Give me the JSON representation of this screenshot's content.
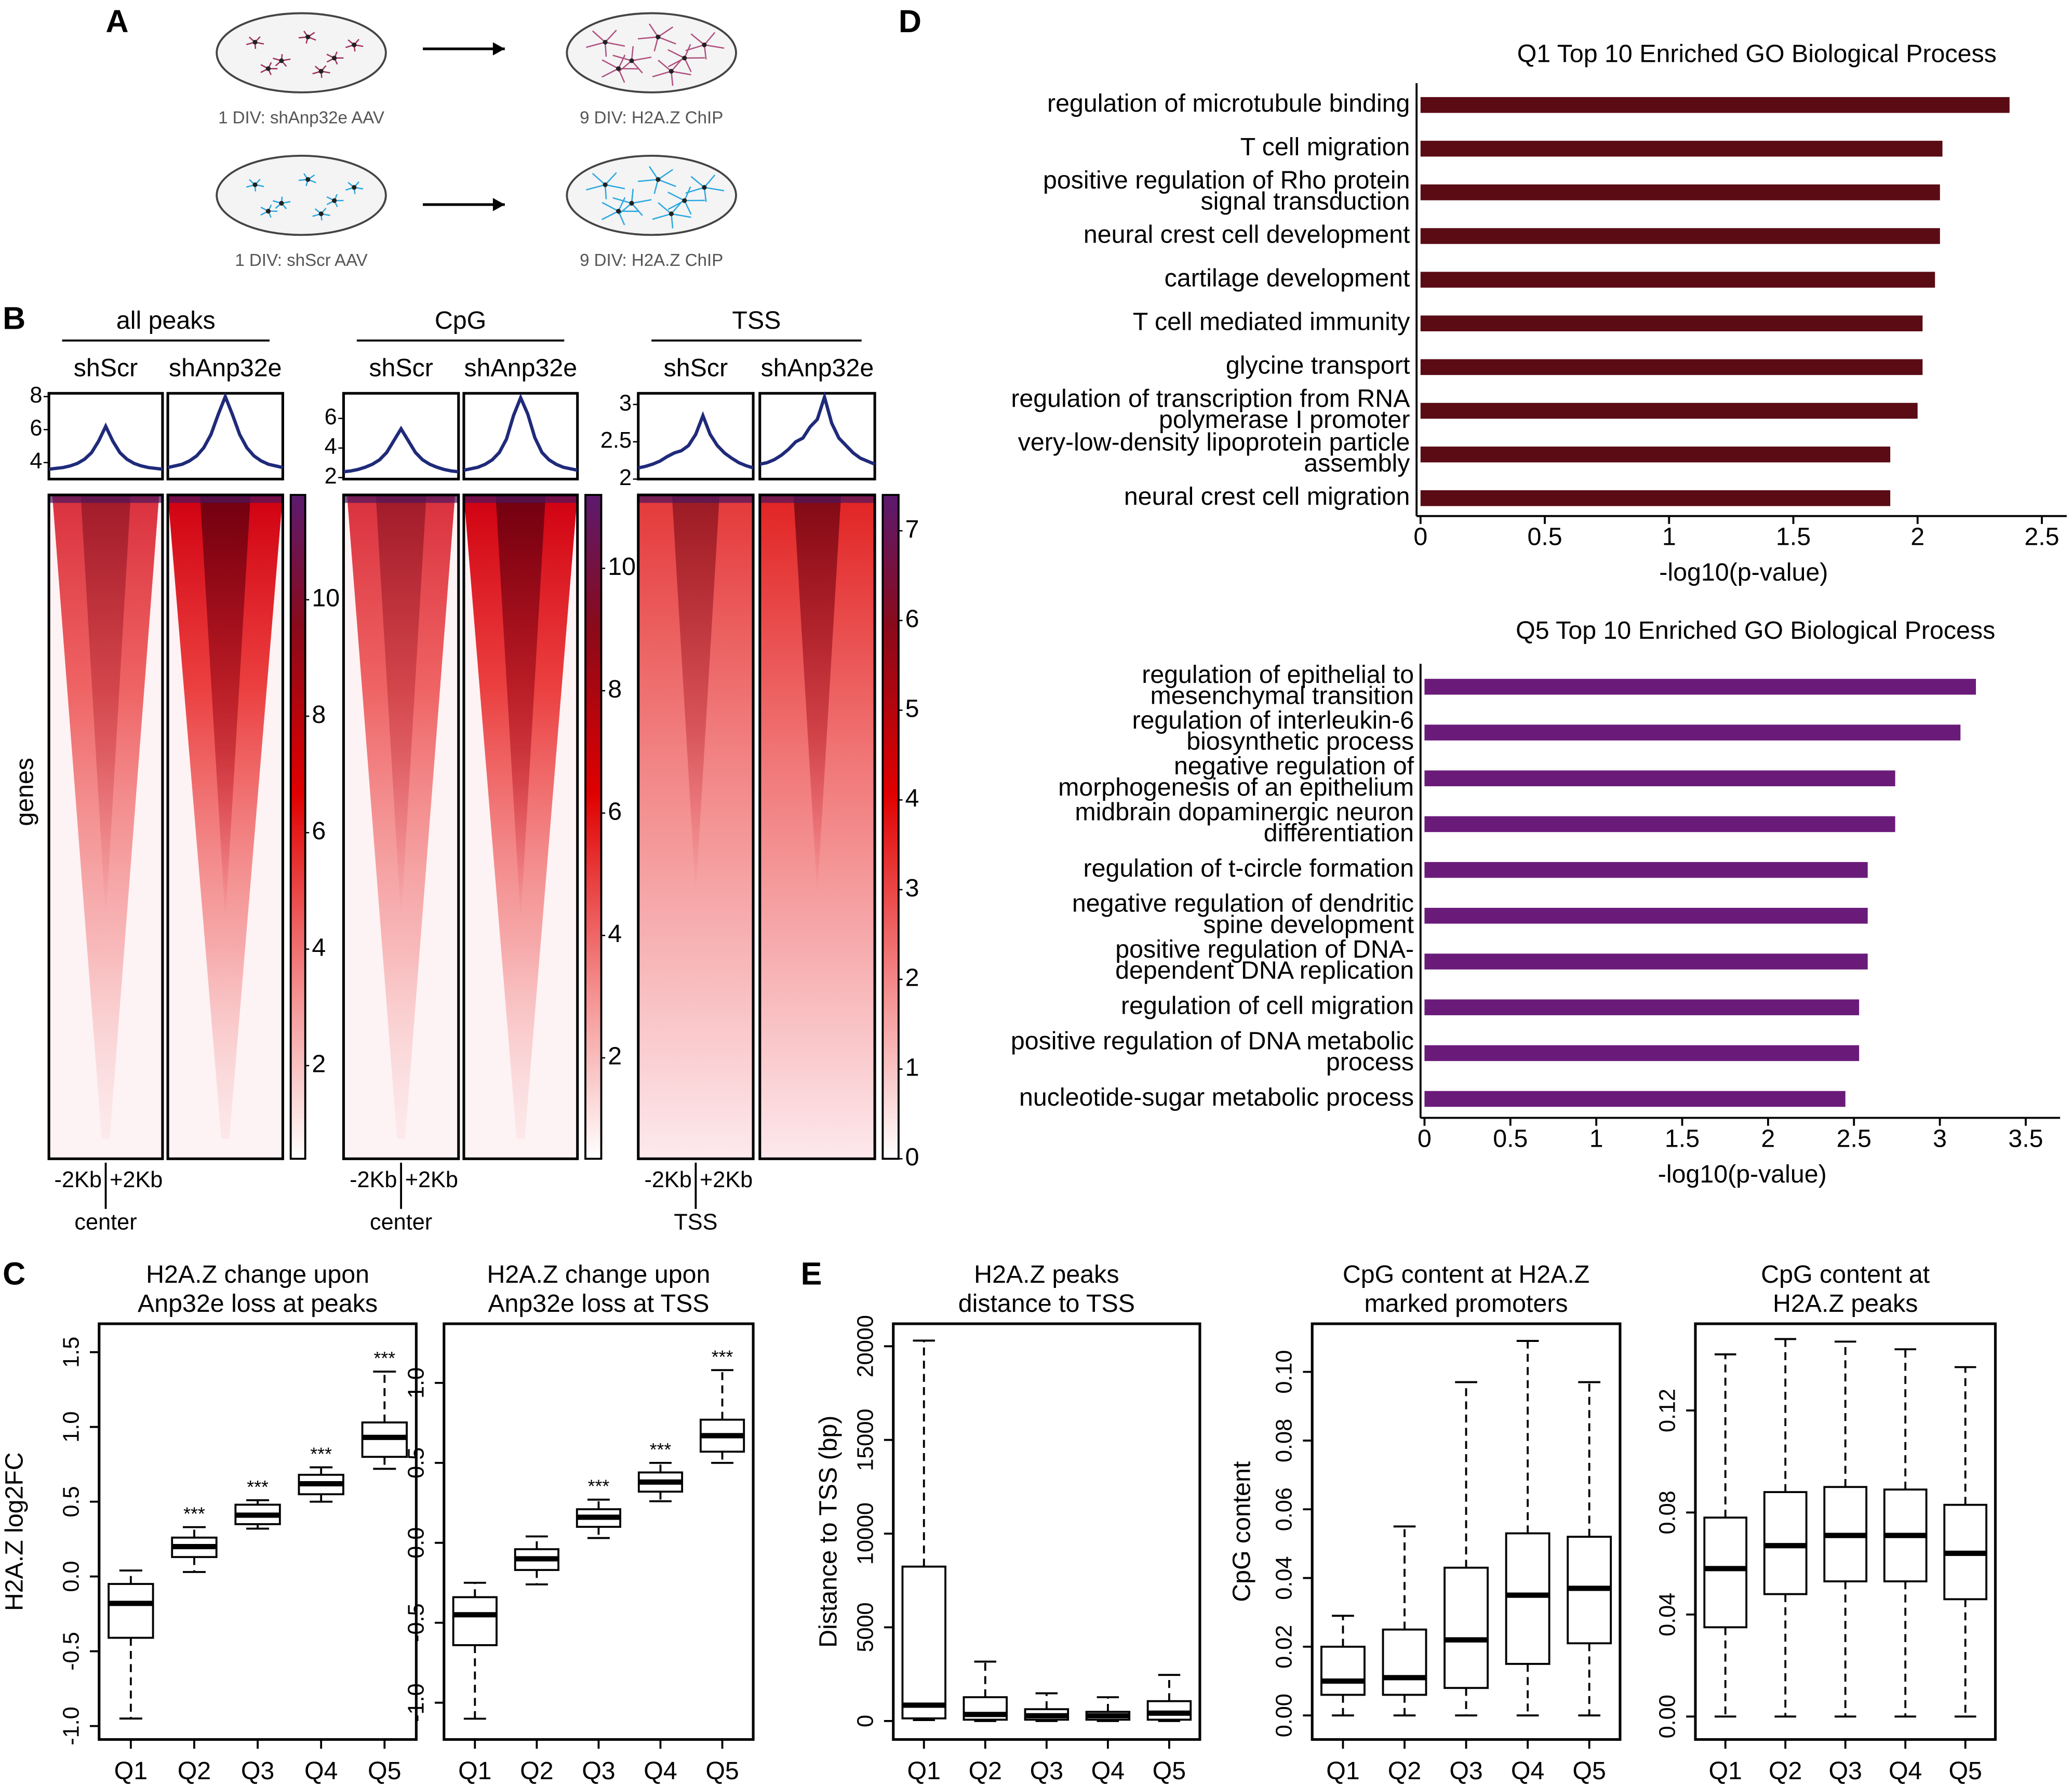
{
  "panel_labels": [
    "A",
    "B",
    "C",
    "D",
    "E"
  ],
  "schematic": {
    "labels": [
      "1 DIV: shAnp32e AAV",
      "9 DIV: H2A.Z ChIP",
      "1 DIV: shScr AAV",
      "9 DIV: H2A.Z ChIP"
    ]
  },
  "chart_data": [
    {
      "type": "heatmap_profile",
      "title": "all peaks",
      "ylabel": "genes",
      "x": [
        -2000,
        -1750,
        -1500,
        -1250,
        -1000,
        -750,
        -500,
        -250,
        0,
        250,
        500,
        750,
        1000,
        1250,
        1500,
        1750,
        2000
      ],
      "xlim": [
        -2000,
        2000
      ],
      "x_labels": [
        "-2Kb",
        "+2Kb"
      ],
      "center_label": "center",
      "series": [
        {
          "name": "shScr",
          "color": "#1f2a7a",
          "values": [
            3.6,
            3.65,
            3.7,
            3.8,
            3.95,
            4.2,
            4.6,
            5.3,
            6.2,
            5.3,
            4.6,
            4.2,
            3.95,
            3.8,
            3.7,
            3.65,
            3.6
          ]
        },
        {
          "name": "shAnp32e",
          "color": "#1f2a7a",
          "values": [
            3.7,
            3.8,
            3.9,
            4.1,
            4.4,
            4.9,
            5.7,
            6.9,
            8.0,
            6.9,
            5.7,
            4.9,
            4.4,
            4.1,
            3.9,
            3.8,
            3.7
          ]
        }
      ],
      "ylim": [
        3,
        8.2
      ],
      "yticks": [
        4,
        6,
        8
      ],
      "colorbar_lim": [
        0.4,
        11.8
      ],
      "colorbar_ticks": [
        2,
        4,
        6,
        8,
        10
      ]
    },
    {
      "type": "heatmap_profile",
      "title": "CpG",
      "x": [
        -2000,
        -1750,
        -1500,
        -1250,
        -1000,
        -750,
        -500,
        -250,
        0,
        250,
        500,
        750,
        1000,
        1250,
        1500,
        1750,
        2000
      ],
      "xlim": [
        -2000,
        2000
      ],
      "x_labels": [
        "-2Kb",
        "+2Kb"
      ],
      "center_label": "center",
      "series": [
        {
          "name": "shScr",
          "color": "#1f2a7a",
          "values": [
            2.4,
            2.45,
            2.55,
            2.7,
            2.9,
            3.2,
            3.7,
            4.5,
            5.3,
            4.5,
            3.7,
            3.2,
            2.9,
            2.7,
            2.55,
            2.45,
            2.4
          ]
        },
        {
          "name": "shAnp32e",
          "color": "#1f2a7a",
          "values": [
            2.5,
            2.6,
            2.7,
            2.9,
            3.2,
            3.7,
            4.6,
            6.2,
            7.4,
            6.3,
            4.7,
            3.7,
            3.2,
            2.9,
            2.7,
            2.6,
            2.5
          ]
        }
      ],
      "ylim": [
        1.9,
        7.7
      ],
      "yticks": [
        2,
        4,
        6
      ],
      "colorbar_lim": [
        0.35,
        11.2
      ],
      "colorbar_ticks": [
        2,
        4,
        6,
        8,
        10
      ]
    },
    {
      "type": "heatmap_profile",
      "title": "TSS",
      "x": [
        -2000,
        -1750,
        -1500,
        -1250,
        -1000,
        -750,
        -500,
        -250,
        0,
        250,
        500,
        750,
        1000,
        1250,
        1500,
        1750,
        2000
      ],
      "xlim": [
        -2000,
        2000
      ],
      "x_labels": [
        "-2Kb",
        "+2Kb"
      ],
      "center_label": "TSS",
      "series": [
        {
          "name": "shScr",
          "color": "#1f2a7a",
          "values": [
            2.15,
            2.17,
            2.2,
            2.24,
            2.3,
            2.35,
            2.38,
            2.45,
            2.6,
            2.85,
            2.6,
            2.45,
            2.35,
            2.28,
            2.22,
            2.18,
            2.15
          ]
        },
        {
          "name": "shAnp32e",
          "color": "#1f2a7a",
          "values": [
            2.2,
            2.22,
            2.26,
            2.32,
            2.4,
            2.5,
            2.55,
            2.7,
            2.8,
            3.1,
            2.75,
            2.55,
            2.45,
            2.35,
            2.28,
            2.24,
            2.2
          ]
        }
      ],
      "ylim": [
        2,
        3.15
      ],
      "yticks": [
        2,
        2.5,
        3
      ],
      "colorbar_lim": [
        0,
        7.4
      ],
      "colorbar_ticks": [
        0,
        1,
        2,
        3,
        4,
        5,
        6,
        7
      ]
    },
    {
      "type": "boxplot",
      "title": [
        "H2A.Z change upon",
        "Anp32e loss at peaks"
      ],
      "ylabel": "H2A.Z log2FC",
      "categories": [
        "Q1",
        "Q2",
        "Q3",
        "Q4",
        "Q5"
      ],
      "min": [
        -0.95,
        0.03,
        0.32,
        0.5,
        0.72
      ],
      "q1": [
        -0.41,
        0.13,
        0.35,
        0.55,
        0.8
      ],
      "median": [
        -0.18,
        0.2,
        0.41,
        0.62,
        0.93
      ],
      "q3": [
        -0.05,
        0.26,
        0.48,
        0.68,
        1.03
      ],
      "max": [
        0.04,
        0.33,
        0.51,
        0.73,
        1.37
      ],
      "annotations": [
        null,
        "***",
        "***",
        "***",
        "***"
      ],
      "ylim": [
        -1.09,
        1.69
      ],
      "yticks": [
        {
          "value": -1,
          "label": "-1.0"
        },
        -0.5,
        {
          "value": 0,
          "label": "0.0"
        },
        0.5,
        {
          "value": 1,
          "label": "1.0"
        },
        1.5
      ]
    },
    {
      "type": "boxplot",
      "title": [
        "H2A.Z change upon",
        "Anp32e loss at TSS"
      ],
      "categories": [
        "Q1",
        "Q2",
        "Q3",
        "Q4",
        "Q5"
      ],
      "min": [
        -1.1,
        -0.26,
        0.03,
        0.26,
        0.5
      ],
      "q1": [
        -0.64,
        -0.17,
        0.1,
        0.32,
        0.57
      ],
      "median": [
        -0.45,
        -0.1,
        0.16,
        0.38,
        0.67
      ],
      "q3": [
        -0.34,
        -0.04,
        0.21,
        0.44,
        0.77
      ],
      "max": [
        -0.25,
        0.04,
        0.27,
        0.5,
        1.08
      ],
      "annotations": [
        null,
        null,
        "***",
        "***",
        "***"
      ],
      "ylim": [
        -1.23,
        1.37
      ],
      "yticks": [
        {
          "value": -1,
          "label": "-1.0"
        },
        -0.5,
        {
          "value": 0,
          "label": "0.0"
        },
        0.5,
        {
          "value": 1,
          "label": "1.0"
        }
      ]
    },
    {
      "type": "hbar",
      "title": "Q1 Top 10 Enriched GO Biological Process",
      "categories": [
        [
          "regulation of microtubule binding"
        ],
        [
          "T cell migration"
        ],
        [
          "positive regulation of Rho protein",
          "signal transduction"
        ],
        [
          "neural crest cell development"
        ],
        [
          "cartilage development"
        ],
        [
          "T cell mediated immunity"
        ],
        [
          "glycine transport"
        ],
        [
          "regulation of transcription from RNA",
          "polymerase I promoter"
        ],
        [
          "very-low-density lipoprotein particle",
          "assembly"
        ],
        [
          "neural crest cell migration"
        ]
      ],
      "values": [
        2.37,
        2.1,
        2.09,
        2.09,
        2.07,
        2.02,
        2.02,
        2.0,
        1.89,
        1.89
      ],
      "color": "#5a0b14",
      "xlim": [
        0,
        2.6
      ],
      "xticks": [
        0,
        0.5,
        1,
        1.5,
        2,
        2.5
      ],
      "xlabel": "-log10(p-value)"
    },
    {
      "type": "hbar",
      "title": "Q5 Top 10 Enriched GO Biological Process",
      "categories": [
        [
          "regulation of epithelial to",
          "mesenchymal transition"
        ],
        [
          "regulation of interleukin-6",
          "biosynthetic process"
        ],
        [
          "negative regulation of",
          "morphogenesis of an epithelium"
        ],
        [
          "midbrain dopaminergic neuron",
          "differentiation"
        ],
        [
          "regulation of t-circle formation"
        ],
        [
          "negative regulation of dendritic",
          "spine development"
        ],
        [
          "positive regulation of DNA-",
          "dependent DNA replication"
        ],
        [
          "regulation of cell migration"
        ],
        [
          "positive regulation of DNA metabolic",
          "process"
        ],
        [
          "nucleotide-sugar metabolic process"
        ]
      ],
      "values": [
        3.21,
        3.12,
        2.74,
        2.74,
        2.58,
        2.58,
        2.58,
        2.53,
        2.53,
        2.45
      ],
      "color": "#6a1b7a",
      "xlim": [
        0,
        3.7
      ],
      "xticks": [
        0,
        0.5,
        1,
        1.5,
        2,
        2.5,
        3,
        3.5
      ],
      "xlabel": "-log10(p-value)"
    },
    {
      "type": "boxplot",
      "title": [
        "H2A.Z peaks",
        "distance to TSS"
      ],
      "ylabel": "Distance to TSS (bp)",
      "categories": [
        "Q1",
        "Q2",
        "Q3",
        "Q4",
        "Q5"
      ],
      "min": [
        50,
        0,
        0,
        0,
        0
      ],
      "q1": [
        140,
        70,
        70,
        70,
        70
      ],
      "median": [
        845,
        350,
        280,
        280,
        420
      ],
      "q3": [
        8240,
        1270,
        630,
        490,
        1060
      ],
      "max": [
        20300,
        3170,
        1480,
        1270,
        2460
      ],
      "ylim": [
        -986,
        21200
      ],
      "yticks": [
        0,
        5000,
        10000,
        15000,
        20000
      ]
    },
    {
      "type": "boxplot",
      "title": [
        "CpG content at H2A.Z",
        "marked promoters"
      ],
      "ylabel": "CpG content",
      "categories": [
        "Q1",
        "Q2",
        "Q3",
        "Q4",
        "Q5"
      ],
      "min": [
        0,
        0,
        0,
        0,
        0
      ],
      "q1": [
        0.006,
        0.006,
        0.008,
        0.015,
        0.021
      ],
      "median": [
        0.01,
        0.011,
        0.022,
        0.035,
        0.037
      ],
      "q3": [
        0.02,
        0.025,
        0.043,
        0.053,
        0.052
      ],
      "max": [
        0.029,
        0.055,
        0.097,
        0.109,
        0.097
      ],
      "ylim": [
        -0.007,
        0.114
      ],
      "yticks": [
        {
          "value": 0,
          "label": "0.00"
        },
        0.02,
        0.04,
        0.06,
        0.08,
        {
          "value": 0.1,
          "label": "0.10"
        }
      ]
    },
    {
      "type": "boxplot",
      "title": [
        "CpG content at",
        "H2A.Z peaks"
      ],
      "categories": [
        "Q1",
        "Q2",
        "Q3",
        "Q4",
        "Q5"
      ],
      "min": [
        0,
        0,
        0,
        0,
        0
      ],
      "q1": [
        0.035,
        0.048,
        0.053,
        0.053,
        0.046
      ],
      "median": [
        0.058,
        0.067,
        0.071,
        0.071,
        0.064
      ],
      "q3": [
        0.078,
        0.088,
        0.09,
        0.089,
        0.083
      ],
      "max": [
        0.142,
        0.148,
        0.147,
        0.144,
        0.137
      ],
      "ylim": [
        -0.009,
        0.154
      ],
      "yticks": [
        {
          "value": 0,
          "label": "0.00"
        },
        0.04,
        0.08,
        0.12
      ]
    }
  ]
}
